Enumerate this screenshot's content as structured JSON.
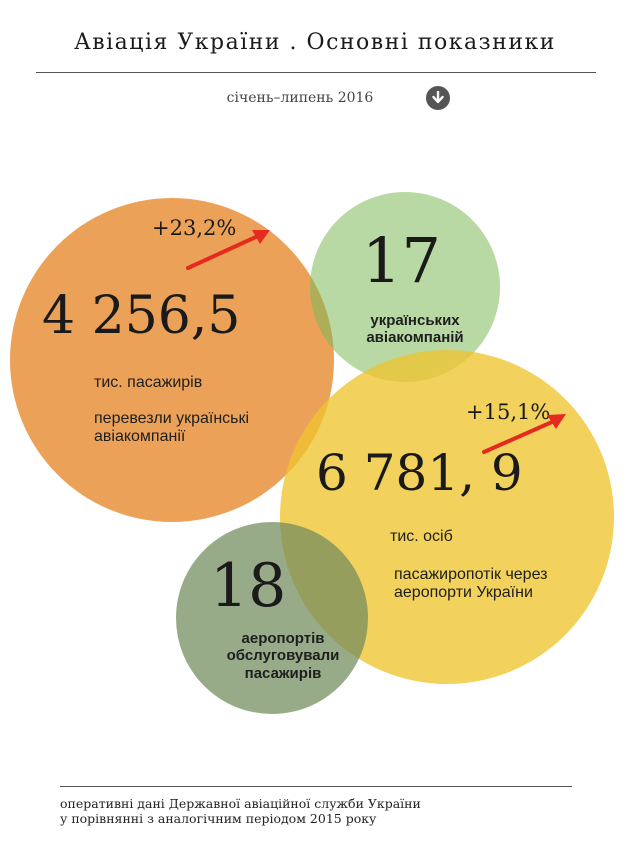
{
  "header": {
    "title": "Авіація  України . Основні  показники",
    "period": "січень–липень 2016",
    "download_icon": "down-arrow-circle-icon"
  },
  "stats": {
    "passengers": {
      "value": "4 256,5",
      "unit": "тис. пасажирів",
      "description": "перевезли українські авіакомпанії",
      "growth": "+23,2%",
      "color": "#E88C34"
    },
    "airlines": {
      "value": "17",
      "description": "українських авіакомпаній",
      "color": "#7EBA58"
    },
    "passenger_flow": {
      "value": "6 781, 9",
      "unit": "тис. осіб",
      "description": "пасажиропотік через аеропорти України",
      "growth": "+15,1%",
      "color": "#EEC430"
    },
    "airports": {
      "value": "18",
      "description": "аеропортів обслуговували пасажирів",
      "color": "#708A5C"
    }
  },
  "arrow_color": "#E52A1E",
  "footer": {
    "line1": "оперативні  дані Державної авіаційної служби України",
    "line2": "у порівнянні  з аналогічним  періодом  2015 року"
  }
}
